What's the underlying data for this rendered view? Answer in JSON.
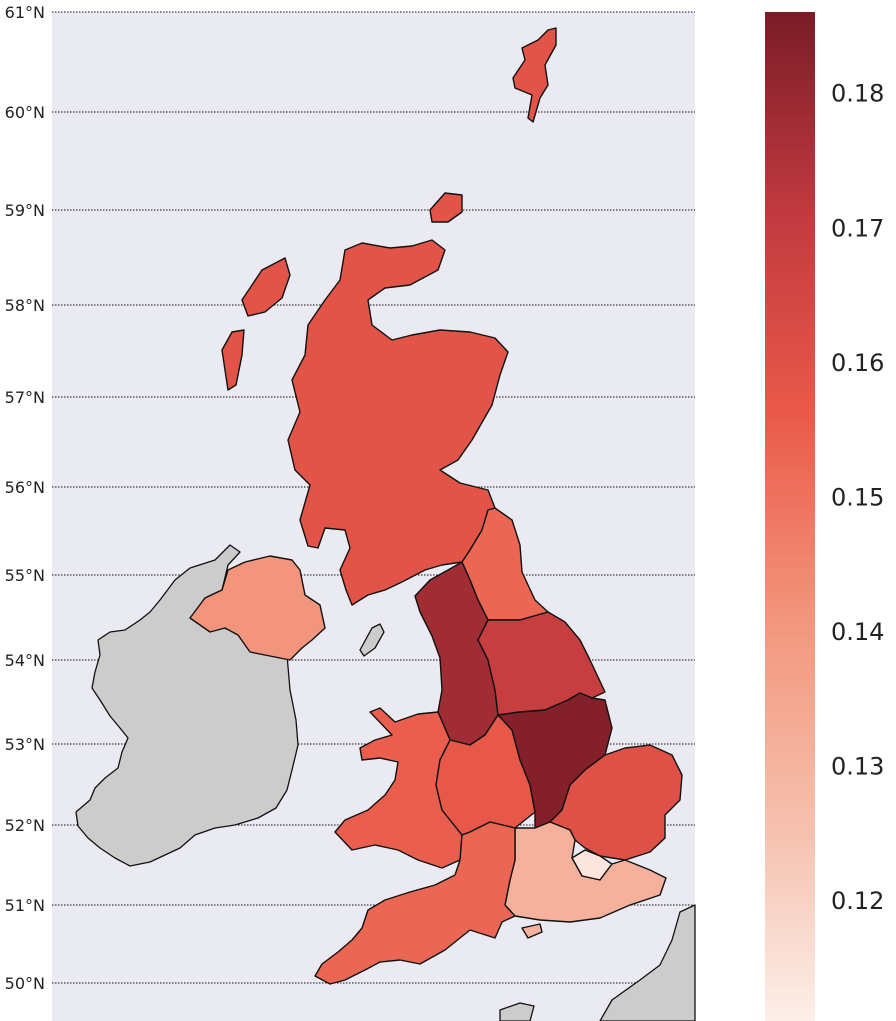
{
  "map": {
    "latitude_labels": [
      {
        "lat": 61,
        "label": "61°N"
      },
      {
        "lat": 60,
        "label": "60°N"
      },
      {
        "lat": 59,
        "label": "59°N"
      },
      {
        "lat": 58,
        "label": "58°N"
      },
      {
        "lat": 57,
        "label": "57°N"
      },
      {
        "lat": 56,
        "label": "56°N"
      },
      {
        "lat": 55,
        "label": "55°N"
      },
      {
        "lat": 54,
        "label": "54°N"
      },
      {
        "lat": 53,
        "label": "53°N"
      },
      {
        "lat": 52,
        "label": "52°N"
      },
      {
        "lat": 51,
        "label": "51°N"
      },
      {
        "lat": 50,
        "label": "50°N"
      }
    ],
    "colors": {
      "background": "#eaeaf2",
      "gridline": "#111111",
      "non_data_land": "#cccccc",
      "colormap_low": "#fcefe9",
      "colormap_high": "#7a1c27"
    },
    "colorbar": {
      "min": 0.111,
      "max": 0.186,
      "ticks": [
        {
          "value": 0.12,
          "label": "0.12"
        },
        {
          "value": 0.13,
          "label": "0.13"
        },
        {
          "value": 0.14,
          "label": "0.14"
        },
        {
          "value": 0.15,
          "label": "0.15"
        },
        {
          "value": 0.16,
          "label": "0.16"
        },
        {
          "value": 0.17,
          "label": "0.17"
        },
        {
          "value": 0.18,
          "label": "0.18"
        }
      ]
    },
    "regions": [
      {
        "id": "scotland",
        "value": 0.159
      },
      {
        "id": "northern-ireland",
        "value": 0.141
      },
      {
        "id": "north-east",
        "value": 0.153
      },
      {
        "id": "north-west",
        "value": 0.178
      },
      {
        "id": "yorkshire-humber",
        "value": 0.169
      },
      {
        "id": "wales",
        "value": 0.155
      },
      {
        "id": "west-midlands",
        "value": 0.157
      },
      {
        "id": "east-midlands",
        "value": 0.184
      },
      {
        "id": "east-of-england",
        "value": 0.16
      },
      {
        "id": "london",
        "value": 0.114
      },
      {
        "id": "south-east",
        "value": 0.131
      },
      {
        "id": "south-west",
        "value": 0.153
      }
    ]
  }
}
